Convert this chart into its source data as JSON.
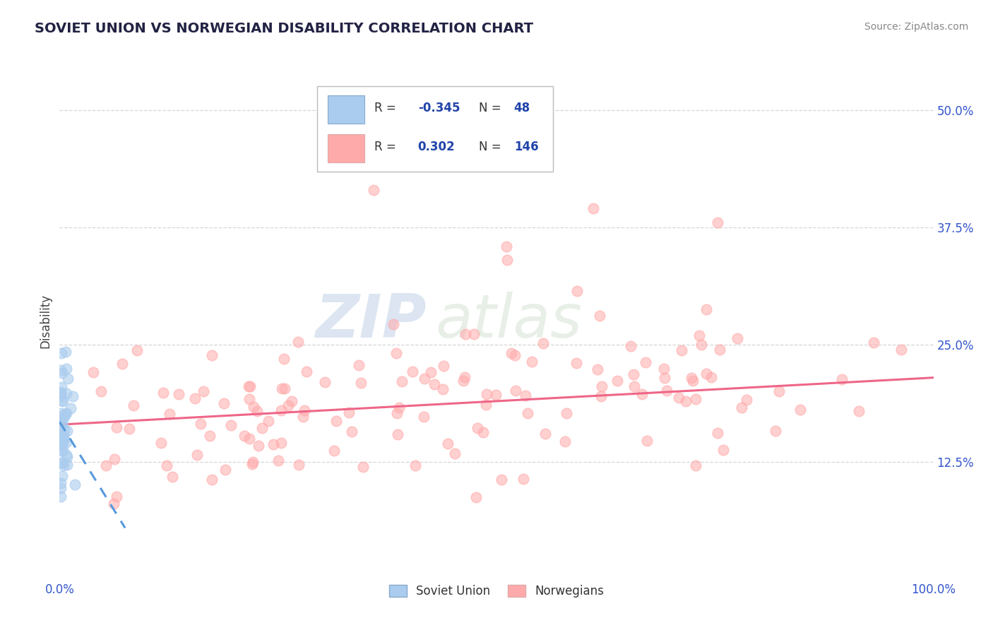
{
  "title": "SOVIET UNION VS NORWEGIAN DISABILITY CORRELATION CHART",
  "source": "Source: ZipAtlas.com",
  "ylabel": "Disability",
  "xlim": [
    0.0,
    1.0
  ],
  "ylim": [
    0.0,
    0.55
  ],
  "yticks": [
    0.125,
    0.25,
    0.375,
    0.5
  ],
  "ytick_labels": [
    "12.5%",
    "25.0%",
    "37.5%",
    "50.0%"
  ],
  "xtick_labels": [
    "0.0%",
    "100.0%"
  ],
  "grid_color": "#cccccc",
  "background_color": "#ffffff",
  "soviet_color": "#aaccee",
  "norwegian_color": "#ffaaaa",
  "soviet_R": -0.345,
  "soviet_N": 48,
  "norwegian_R": 0.302,
  "norwegian_N": 146,
  "legend_soviet_label": "Soviet Union",
  "legend_norwegian_label": "Norwegians",
  "watermark_zip": "ZIP",
  "watermark_atlas": "atlas",
  "norwegian_trend_x0": 0.0,
  "norwegian_trend_x1": 1.0,
  "norwegian_trend_y0": 0.165,
  "norwegian_trend_y1": 0.215,
  "soviet_trend_x0": 0.0,
  "soviet_trend_x1": 0.075,
  "soviet_trend_y0": 0.168,
  "soviet_trend_y1": 0.055,
  "title_color": "#222244",
  "source_color": "#888888",
  "tick_color": "#3355cc",
  "ylabel_color": "#444444"
}
